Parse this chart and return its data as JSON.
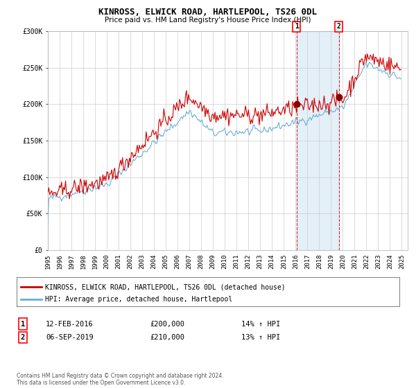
{
  "title": "KINROSS, ELWICK ROAD, HARTLEPOOL, TS26 0DL",
  "subtitle": "Price paid vs. HM Land Registry's House Price Index (HPI)",
  "legend_line1": "KINROSS, ELWICK ROAD, HARTLEPOOL, TS26 0DL (detached house)",
  "legend_line2": "HPI: Average price, detached house, Hartlepool",
  "transaction1_date": "12-FEB-2016",
  "transaction1_price": "£200,000",
  "transaction1_hpi": "14% ↑ HPI",
  "transaction2_date": "06-SEP-2019",
  "transaction2_price": "£210,000",
  "transaction2_hpi": "13% ↑ HPI",
  "footer": "Contains HM Land Registry data © Crown copyright and database right 2024.\nThis data is licensed under the Open Government Licence v3.0.",
  "hpi_color": "#6baed6",
  "price_color": "#cc0000",
  "marker1_value": 200000,
  "marker2_value": 210000,
  "ylim_min": 0,
  "ylim_max": 300000,
  "background_color": "#ffffff",
  "plot_bg_color": "#ffffff",
  "shade_color": "#ddeeff"
}
